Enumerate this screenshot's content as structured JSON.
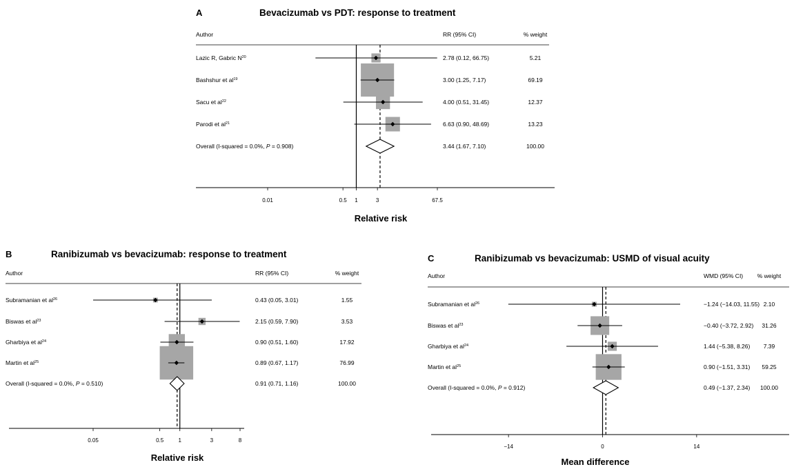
{
  "chart_data": [
    {
      "type": "forest",
      "letter": "A",
      "title": "Bevacizumab vs PDT: response to treatment",
      "header": {
        "author": "Author",
        "est": "RR (95% CI)",
        "weight": "% weight"
      },
      "xlabel": "Relative risk",
      "scale": "log",
      "null_value": 1,
      "overall_line": 3.44,
      "xlim": [
        0.01,
        67.5
      ],
      "ticks": [
        {
          "v": 0.01,
          "label": "0.01"
        },
        {
          "v": 0.5,
          "label": "0.5"
        },
        {
          "v": 1,
          "label": "1"
        },
        {
          "v": 3,
          "label": "3"
        },
        {
          "v": 67.5,
          "label": "67.5"
        }
      ],
      "studies": [
        {
          "name": "Lazic R, Gabric N",
          "ref": "20",
          "est": 2.78,
          "lo": 0.12,
          "hi": 66.75,
          "ci_text": "2.78 (0.12, 66.75)",
          "weight_text": "5.21",
          "weight": 5.21
        },
        {
          "name": "Bashshur et al",
          "ref": "19",
          "est": 3.0,
          "lo": 1.25,
          "hi": 7.17,
          "ci_text": "3.00 (1.25, 7.17)",
          "weight_text": "69.19",
          "weight": 69.19
        },
        {
          "name": "Sacu et al",
          "ref": "22",
          "est": 4.0,
          "lo": 0.51,
          "hi": 31.45,
          "ci_text": "4.00 (0.51, 31.45)",
          "weight_text": "12.37",
          "weight": 12.37
        },
        {
          "name": "Parodi et al",
          "ref": "21",
          "est": 6.63,
          "lo": 0.9,
          "hi": 48.69,
          "ci_text": "6.63 (0.90, 48.69)",
          "weight_text": "13.23",
          "weight": 13.23
        }
      ],
      "overall": {
        "label_prefix": "Overall  (I-squared = 0.0%, ",
        "p_label": "P",
        "p_value": " = 0.908)",
        "est": 3.44,
        "lo": 1.67,
        "hi": 7.1,
        "ci_text": "3.44 (1.67, 7.10)",
        "weight_text": "100.00"
      }
    },
    {
      "type": "forest",
      "letter": "B",
      "title": "Ranibizumab vs bevacizumab: response to treatment",
      "header": {
        "author": "Author",
        "est": "RR (95% CI)",
        "weight": "% weight"
      },
      "xlabel": "Relative risk",
      "scale": "log",
      "null_value": 1,
      "overall_line": 0.91,
      "xlim": [
        0.05,
        8
      ],
      "ticks": [
        {
          "v": 0.05,
          "label": "0.05"
        },
        {
          "v": 0.5,
          "label": "0.5"
        },
        {
          "v": 1,
          "label": "1"
        },
        {
          "v": 3,
          "label": "3"
        },
        {
          "v": 8,
          "label": "8"
        }
      ],
      "studies": [
        {
          "name": "Subramanian et al",
          "ref": "26",
          "est": 0.43,
          "lo": 0.05,
          "hi": 3.01,
          "ci_text": "0.43 (0.05, 3.01)",
          "weight_text": "1.55",
          "weight": 1.55
        },
        {
          "name": "Biswas et al",
          "ref": "23",
          "est": 2.15,
          "lo": 0.59,
          "hi": 7.9,
          "ci_text": "2.15 (0.59, 7.90)",
          "weight_text": "3.53",
          "weight": 3.53
        },
        {
          "name": "Gharbiya et al",
          "ref": "24",
          "est": 0.9,
          "lo": 0.51,
          "hi": 1.6,
          "ci_text": "0.90 (0.51, 1.60)",
          "weight_text": "17.92",
          "weight": 17.92
        },
        {
          "name": "Martin et al",
          "ref": "25",
          "est": 0.89,
          "lo": 0.67,
          "hi": 1.17,
          "ci_text": "0.89 (0.67, 1.17)",
          "weight_text": "76.99",
          "weight": 76.99
        }
      ],
      "overall": {
        "label_prefix": "Overall  (I-squared = 0.0%, ",
        "p_label": "P",
        "p_value": " = 0.510)",
        "est": 0.91,
        "lo": 0.71,
        "hi": 1.16,
        "ci_text": "0.91 (0.71, 1.16)",
        "weight_text": "100.00"
      }
    },
    {
      "type": "forest",
      "letter": "C",
      "title": "Ranibizumab vs bevacizumab: USMD of visual acuity",
      "header": {
        "author": "Author",
        "est": "WMD (95% CI)",
        "weight": "% weight"
      },
      "xlabel": "Mean difference",
      "scale": "linear",
      "null_value": 0,
      "overall_line": 0.49,
      "xlim": [
        -25,
        25
      ],
      "ticks": [
        {
          "v": -14,
          "label": "−14"
        },
        {
          "v": 0,
          "label": "0"
        },
        {
          "v": 14,
          "label": "14"
        }
      ],
      "studies": [
        {
          "name": "Subramanian et al",
          "ref": "26",
          "est": -1.24,
          "lo": -14.03,
          "hi": 11.55,
          "ci_text": "−1.24 (−14.03, 11.55)",
          "weight_text": "2.10",
          "weight": 2.1
        },
        {
          "name": "Biswas et al",
          "ref": "23",
          "est": -0.4,
          "lo": -3.72,
          "hi": 2.92,
          "ci_text": "−0.40 (−3.72, 2.92)",
          "weight_text": "31.26",
          "weight": 31.26
        },
        {
          "name": "Gharbiya et al",
          "ref": "24",
          "est": 1.44,
          "lo": -5.38,
          "hi": 8.26,
          "ci_text": "1.44 (−5.38, 8.26)",
          "weight_text": "7.39",
          "weight": 7.39
        },
        {
          "name": "Martin et al",
          "ref": "25",
          "est": 0.9,
          "lo": -1.51,
          "hi": 3.31,
          "ci_text": "0.90 (−1.51, 3.31)",
          "weight_text": "59.25",
          "weight": 59.25
        }
      ],
      "overall": {
        "label_prefix": "Overall  (I-squared = 0.0%, ",
        "p_label": "P",
        "p_value": " = 0.912)",
        "est": 0.49,
        "lo": -1.37,
        "hi": 2.34,
        "ci_text": "0.49 (−1.37, 2.34)",
        "weight_text": "100.00"
      }
    }
  ],
  "colors": {
    "weight_box": "#a6a6a6",
    "line": "#000000",
    "background": "#ffffff"
  }
}
